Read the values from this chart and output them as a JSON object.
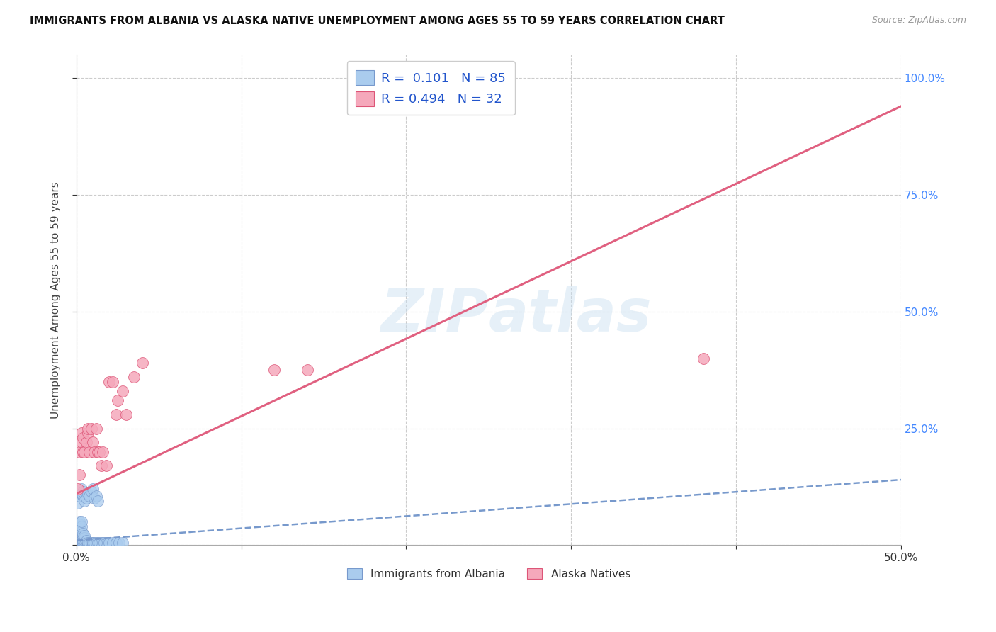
{
  "title": "IMMIGRANTS FROM ALBANIA VS ALASKA NATIVE UNEMPLOYMENT AMONG AGES 55 TO 59 YEARS CORRELATION CHART",
  "source": "Source: ZipAtlas.com",
  "ylabel": "Unemployment Among Ages 55 to 59 years",
  "xlim": [
    0.0,
    0.5
  ],
  "ylim": [
    0.0,
    1.05
  ],
  "xticks": [
    0.0,
    0.1,
    0.2,
    0.3,
    0.4,
    0.5
  ],
  "yticks": [
    0.0,
    0.25,
    0.5,
    0.75,
    1.0
  ],
  "yticklabels_right": [
    "",
    "25.0%",
    "50.0%",
    "75.0%",
    "100.0%"
  ],
  "legend_r1": "R =  0.101",
  "legend_n1": "N = 85",
  "legend_r2": "R = 0.494",
  "legend_n2": "N = 32",
  "color_albania": "#aaccee",
  "color_albania_edge": "#7799cc",
  "color_native": "#f5a8bb",
  "color_native_edge": "#dd5577",
  "color_native_line": "#e06080",
  "color_albania_line": "#7799cc",
  "color_axis_right": "#4488ff",
  "color_legend_text": "#2255cc",
  "watermark": "ZIPatlas",
  "albania_scatter_x": [
    0.001,
    0.001,
    0.001,
    0.001,
    0.001,
    0.001,
    0.001,
    0.001,
    0.001,
    0.001,
    0.002,
    0.002,
    0.002,
    0.002,
    0.002,
    0.002,
    0.002,
    0.002,
    0.002,
    0.002,
    0.002,
    0.002,
    0.002,
    0.002,
    0.002,
    0.003,
    0.003,
    0.003,
    0.003,
    0.003,
    0.003,
    0.003,
    0.003,
    0.003,
    0.004,
    0.004,
    0.004,
    0.004,
    0.004,
    0.004,
    0.005,
    0.005,
    0.005,
    0.005,
    0.005,
    0.006,
    0.006,
    0.006,
    0.007,
    0.007,
    0.008,
    0.008,
    0.009,
    0.009,
    0.01,
    0.01,
    0.011,
    0.012,
    0.013,
    0.014,
    0.015,
    0.016,
    0.017,
    0.018,
    0.019,
    0.02,
    0.022,
    0.024,
    0.026,
    0.028,
    0.001,
    0.002,
    0.003,
    0.003,
    0.004,
    0.004,
    0.005,
    0.006,
    0.007,
    0.008,
    0.009,
    0.01,
    0.011,
    0.012,
    0.013
  ],
  "albania_scatter_y": [
    0.0,
    0.0,
    0.005,
    0.005,
    0.01,
    0.01,
    0.015,
    0.02,
    0.025,
    0.03,
    0.0,
    0.0,
    0.0,
    0.005,
    0.005,
    0.005,
    0.01,
    0.015,
    0.02,
    0.025,
    0.03,
    0.035,
    0.04,
    0.045,
    0.05,
    0.0,
    0.005,
    0.01,
    0.015,
    0.02,
    0.025,
    0.03,
    0.04,
    0.05,
    0.0,
    0.005,
    0.01,
    0.015,
    0.02,
    0.025,
    0.0,
    0.005,
    0.01,
    0.015,
    0.02,
    0.0,
    0.005,
    0.01,
    0.0,
    0.005,
    0.0,
    0.005,
    0.0,
    0.005,
    0.0,
    0.005,
    0.005,
    0.005,
    0.005,
    0.005,
    0.005,
    0.005,
    0.005,
    0.005,
    0.005,
    0.005,
    0.005,
    0.005,
    0.005,
    0.005,
    0.09,
    0.105,
    0.11,
    0.12,
    0.105,
    0.115,
    0.095,
    0.1,
    0.11,
    0.105,
    0.115,
    0.12,
    0.1,
    0.105,
    0.095
  ],
  "native_scatter_x": [
    0.001,
    0.002,
    0.002,
    0.003,
    0.003,
    0.004,
    0.004,
    0.005,
    0.006,
    0.007,
    0.007,
    0.008,
    0.009,
    0.01,
    0.011,
    0.012,
    0.013,
    0.014,
    0.015,
    0.016,
    0.018,
    0.02,
    0.022,
    0.024,
    0.025,
    0.028,
    0.03,
    0.035,
    0.04,
    0.12,
    0.14,
    0.38
  ],
  "native_scatter_y": [
    0.12,
    0.15,
    0.2,
    0.22,
    0.24,
    0.2,
    0.23,
    0.2,
    0.22,
    0.24,
    0.25,
    0.2,
    0.25,
    0.22,
    0.2,
    0.25,
    0.2,
    0.2,
    0.17,
    0.2,
    0.17,
    0.35,
    0.35,
    0.28,
    0.31,
    0.33,
    0.28,
    0.36,
    0.39,
    0.375,
    0.375,
    0.4
  ],
  "albania_trend_x": [
    0.0,
    0.5
  ],
  "albania_trend_y": [
    0.01,
    0.14
  ],
  "native_trend_x": [
    0.0,
    0.5
  ],
  "native_trend_y": [
    0.11,
    0.94
  ]
}
